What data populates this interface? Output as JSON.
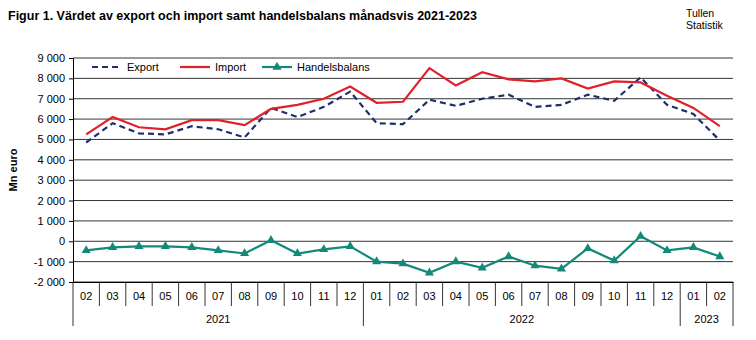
{
  "chart_data": {
    "type": "line",
    "title": "Figur 1. Värdet av export och import samt handelsbalans månadsvis 2021-2023",
    "source_lines": [
      "Tullen",
      "Statistik"
    ],
    "y_label": "Mn euro",
    "categories": [
      "02",
      "03",
      "04",
      "05",
      "06",
      "07",
      "08",
      "09",
      "10",
      "11",
      "12",
      "01",
      "02",
      "03",
      "04",
      "05",
      "06",
      "07",
      "08",
      "09",
      "10",
      "11",
      "12",
      "01",
      "02"
    ],
    "x_groups": [
      {
        "label": "2021",
        "count": 11
      },
      {
        "label": "2022",
        "count": 12
      },
      {
        "label": "2023",
        "count": 2
      }
    ],
    "series": [
      {
        "name": "Export",
        "color": "#1f2f6e",
        "line_style": "dashed",
        "marker": "none",
        "values": [
          4850,
          5800,
          5300,
          5250,
          5650,
          5500,
          5100,
          6550,
          6100,
          6600,
          7350,
          5800,
          5750,
          6950,
          6650,
          7000,
          7200,
          6600,
          6700,
          7200,
          6900,
          8050,
          6700,
          6250,
          4950
        ]
      },
      {
        "name": "Import",
        "color": "#e0202a",
        "line_style": "solid",
        "marker": "none",
        "values": [
          5250,
          6100,
          5600,
          5500,
          5950,
          5950,
          5700,
          6500,
          6700,
          7000,
          7600,
          6800,
          6850,
          8500,
          7650,
          8300,
          7950,
          7850,
          8000,
          7500,
          7850,
          7800,
          7150,
          6550,
          5650
        ]
      },
      {
        "name": "Handelsbalans",
        "color": "#14897a",
        "line_style": "solid",
        "marker": "triangle",
        "values": [
          -450,
          -300,
          -250,
          -250,
          -300,
          -450,
          -600,
          50,
          -600,
          -400,
          -250,
          -1000,
          -1100,
          -1550,
          -1000,
          -1300,
          -750,
          -1200,
          -1350,
          -350,
          -950,
          250,
          -450,
          -300,
          -750
        ]
      }
    ],
    "ylim": [
      -2000,
      9000
    ],
    "yticks": [
      {
        "value": -2000,
        "label": "-2 000"
      },
      {
        "value": -1000,
        "label": "-1 000"
      },
      0,
      {
        "value": 1000,
        "label": "1 000"
      },
      {
        "value": 2000,
        "label": "2 000"
      },
      {
        "value": 3000,
        "label": "3 000"
      },
      {
        "value": 4000,
        "label": "4 000"
      },
      {
        "value": 5000,
        "label": "5 000"
      },
      {
        "value": 6000,
        "label": "6 000"
      },
      {
        "value": 7000,
        "label": "7 000"
      },
      {
        "value": 8000,
        "label": "8 000"
      },
      {
        "value": 9000,
        "label": "9 000"
      }
    ],
    "grid": true,
    "legend": "top"
  }
}
